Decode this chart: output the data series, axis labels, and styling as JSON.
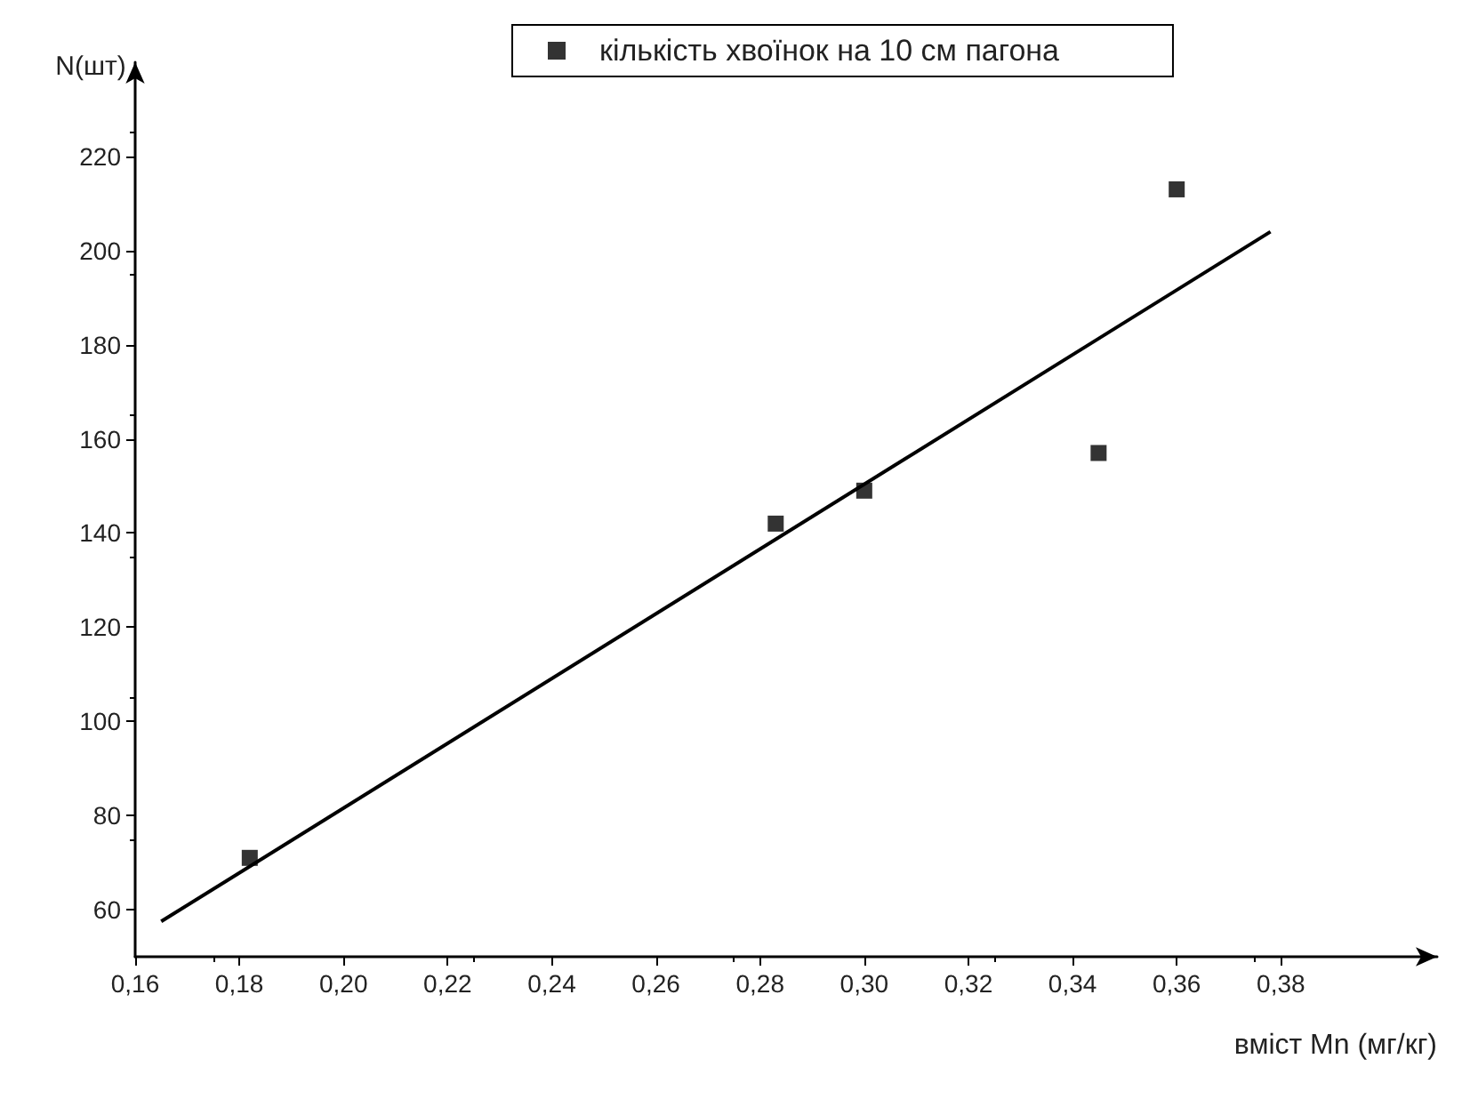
{
  "chart_data": {
    "type": "scatter",
    "xlabel": "вміст Mn (мг/кг)",
    "ylabel": "N(шт)",
    "series": [
      {
        "name": "кількість хвоїнок на 10 см пагона",
        "color": "#000000",
        "x": [
          0.182,
          0.283,
          0.3,
          0.345,
          0.36
        ],
        "values": [
          71,
          142,
          149,
          157,
          213
        ]
      },
      {
        "type": "line",
        "marker": "none",
        "color": "#000000",
        "x": [
          0.165,
          0.378
        ],
        "values": [
          57.5,
          204
        ]
      }
    ],
    "marker": "square",
    "legend": "top",
    "grid": false,
    "xlim": [
      0.16,
      0.41
    ],
    "ylim": [
      50,
      240
    ],
    "xticks": [
      {
        "value": 0.16,
        "label": "0,16"
      },
      {
        "value": 0.18,
        "label": "0,18"
      },
      {
        "value": 0.2,
        "label": "0,20"
      },
      {
        "value": 0.22,
        "label": "0,22"
      },
      {
        "value": 0.24,
        "label": "0,24"
      },
      {
        "value": 0.26,
        "label": "0,26"
      },
      {
        "value": 0.28,
        "label": "0,28"
      },
      {
        "value": 0.3,
        "label": "0,30"
      },
      {
        "value": 0.32,
        "label": "0,32"
      },
      {
        "value": 0.34,
        "label": "0,34"
      },
      {
        "value": 0.36,
        "label": "0,36"
      },
      {
        "value": 0.38,
        "label": "0,38"
      }
    ],
    "yticks": [
      60,
      80,
      100,
      120,
      140,
      160,
      180,
      200,
      220
    ]
  }
}
